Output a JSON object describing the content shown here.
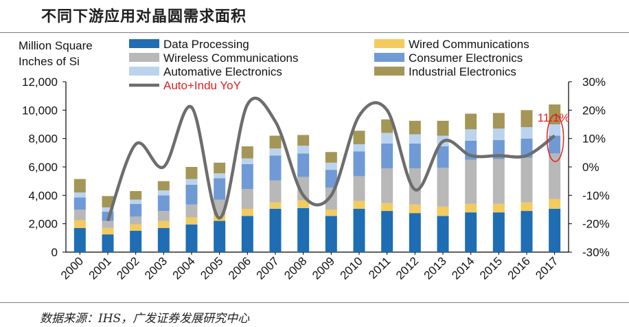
{
  "page": {
    "title": "不同下游应用对晶圆需求面积",
    "source": "数据来源：IHS，广发证券发展研究中心"
  },
  "chart_data": {
    "type": "bar",
    "stacked": true,
    "title": "不同下游应用对晶圆需求面积",
    "ylabel": "Million Square Inches of Si",
    "y2label": "",
    "xlabel": "",
    "ylim": [
      0,
      12000
    ],
    "y2lim": [
      -30,
      30
    ],
    "y_ticks": [
      "0",
      "2,000",
      "4,000",
      "6,000",
      "8,000",
      "10,000",
      "12,000"
    ],
    "y2_ticks": [
      "-30%",
      "-20%",
      "-10%",
      "0%",
      "10%",
      "20%",
      "30%"
    ],
    "categories": [
      "2000",
      "2001",
      "2002",
      "2003",
      "2004",
      "2005",
      "2006",
      "2007",
      "2008",
      "2009",
      "2010",
      "2011",
      "2012",
      "2013",
      "2014",
      "2015",
      "2016",
      "2017"
    ],
    "series": [
      {
        "name": "Data Processing",
        "color": "#1f6db3",
        "values": [
          1700,
          1250,
          1500,
          1700,
          1950,
          2200,
          2550,
          3050,
          3100,
          2550,
          3050,
          2900,
          2750,
          2550,
          2800,
          2800,
          2900,
          3050
        ]
      },
      {
        "name": "Wired Communications",
        "color": "#f3cb5e",
        "values": [
          550,
          450,
          450,
          500,
          500,
          400,
          500,
          450,
          550,
          450,
          550,
          550,
          600,
          650,
          600,
          600,
          600,
          700
        ]
      },
      {
        "name": "Wireless Communications",
        "color": "#b8b8b8",
        "values": [
          750,
          500,
          550,
          700,
          900,
          1100,
          1400,
          1550,
          1650,
          1550,
          1750,
          2450,
          2550,
          2750,
          3100,
          3150,
          3150,
          3200
        ]
      },
      {
        "name": "Consumer Electronics",
        "color": "#6f9ad6",
        "values": [
          850,
          650,
          900,
          1100,
          1400,
          1500,
          1750,
          1750,
          1650,
          1250,
          1750,
          1750,
          1750,
          1500,
          1350,
          1350,
          1350,
          1250
        ]
      },
      {
        "name": "Automative Electronics",
        "color": "#bcd3ee",
        "values": [
          350,
          300,
          300,
          350,
          400,
          350,
          400,
          500,
          550,
          500,
          500,
          750,
          650,
          750,
          800,
          800,
          800,
          800
        ]
      },
      {
        "name": "Industrial Electronics",
        "color": "#a49656",
        "values": [
          950,
          800,
          600,
          650,
          850,
          750,
          850,
          900,
          750,
          750,
          950,
          950,
          950,
          1050,
          1100,
          1100,
          1200,
          1400
        ]
      }
    ],
    "line": {
      "name": "Auto+Indu YoY",
      "color": "#6d6d6d",
      "axis": "right",
      "values": [
        null,
        -19,
        8,
        0,
        21,
        -18,
        22,
        16,
        -10,
        -10,
        18,
        20,
        -8,
        9,
        4,
        4,
        4,
        11
      ]
    },
    "legend_position": "top",
    "annotation": {
      "text": "11.1%",
      "category": "2017",
      "value": 11.1,
      "color": "#e02020"
    }
  }
}
